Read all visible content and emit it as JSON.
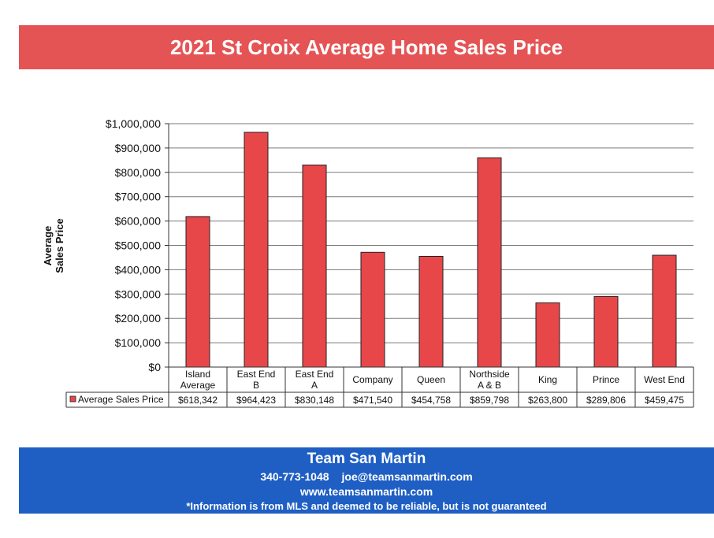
{
  "banner": {
    "title": "2021 St Croix Average Home Sales Price"
  },
  "chart_data": {
    "type": "bar",
    "ylabel": [
      "Average",
      "Sales Price"
    ],
    "ylim": [
      0,
      1000000
    ],
    "yticks": [
      0,
      100000,
      200000,
      300000,
      400000,
      500000,
      600000,
      700000,
      800000,
      900000,
      1000000
    ],
    "ytick_labels": [
      "$0",
      "$100,000",
      "$200,000",
      "$300,000",
      "$400,000",
      "$500,000",
      "$600,000",
      "$700,000",
      "$800,000",
      "$900,000",
      "$1,000,000"
    ],
    "grid": true,
    "categories": [
      [
        "Island",
        "Average"
      ],
      [
        "East End",
        "B"
      ],
      [
        "East End",
        "A"
      ],
      [
        "Company"
      ],
      [
        "Queen"
      ],
      [
        "Northside",
        "A & B"
      ],
      [
        "King"
      ],
      [
        "Prince"
      ],
      [
        "West End"
      ]
    ],
    "series": [
      {
        "name": "Average Sales Price",
        "color": "#e8474a",
        "values": [
          618342,
          964423,
          830148,
          471540,
          454758,
          859798,
          263800,
          289806,
          459475
        ],
        "value_labels": [
          "$618,342",
          "$964,423",
          "$830,148",
          "$471,540",
          "$454,758",
          "$859,798",
          "$263,800",
          "$289,806",
          "$459,475"
        ]
      }
    ]
  },
  "footer": {
    "team": "Team San Martin",
    "phone": "340-773-1048",
    "email": "joe@teamsanmartin.com",
    "website": "www.teamsanmartin.com",
    "disclaimer": "*Information is from MLS and deemed to be reliable, but is not guaranteed"
  }
}
